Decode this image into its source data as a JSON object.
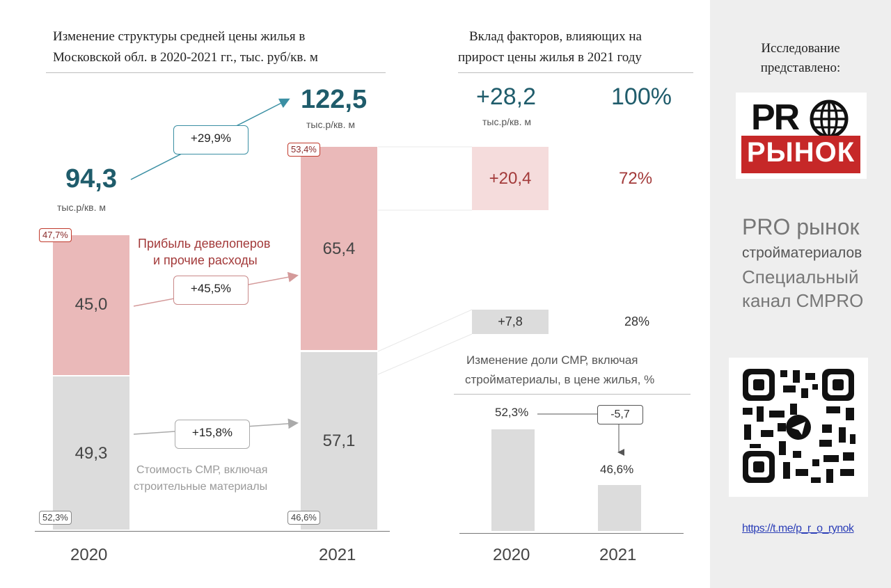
{
  "left": {
    "title_line1": "Изменение структуры средней цены жилья в",
    "title_line2": "Московской обл. в 2020-2021 гг., тыс. руб/кв. м",
    "total_2020": "94,3",
    "unit_2020": "тыс.р/кв. м",
    "total_2021": "122,5",
    "unit_2021": "тыс.р/кв. м",
    "total_change": "+29,9%",
    "profit_label_line1": "Прибыль девелоперов",
    "profit_label_line2": "и прочие расходы",
    "profit_change": "+45,5%",
    "cost_label_line1": "Стоимость СМР, включая",
    "cost_label_line2": "строительные материалы",
    "cost_change": "+15,8%",
    "profit_share_2020": "47,7%",
    "profit_share_2021": "53,4%",
    "cost_share_2020": "52,3%",
    "cost_share_2021": "46,6%",
    "profit_val_2020": "45,0",
    "profit_val_2021": "65,4",
    "cost_val_2020": "49,3",
    "cost_val_2021": "57,1",
    "year_2020": "2020",
    "year_2021": "2021"
  },
  "right": {
    "title_line1": "Вклад факторов, влияющих на",
    "title_line2": "прирост цены жилья в 2021 году",
    "total_delta": "+28,2",
    "total_delta_unit": "тыс.р/кв. м",
    "total_pct": "100%",
    "profit_delta": "+20,4",
    "profit_pct": "72%",
    "cost_delta": "+7,8",
    "cost_pct": "28%",
    "sub_title_line1": "Изменение доли СМР, включая",
    "sub_title_line2": "стройматериалы, в цене жилья, %",
    "share_2020": "52,3%",
    "share_2021": "46,6%",
    "share_change": "-5,7",
    "year_2020": "2020",
    "year_2021": "2021"
  },
  "sidebar": {
    "intro_line1": "Исследование",
    "intro_line2": "представлено:",
    "logo_top": "PR",
    "logo_bottom": "РЫНОК",
    "brand_line1": "PRO рынок",
    "brand_line2": "стройматериалов",
    "brand_line3": "Специальный",
    "brand_line4": "канал CMPRO",
    "link": "https://t.me/p_r_o_rynok"
  },
  "colors": {
    "accent_teal": "#1f5c6b",
    "profit_pink": "#eab9b9",
    "cost_grey": "#dcdcdc",
    "profit_text": "#a33a3a",
    "logo_red": "#c62828"
  },
  "chart_data": [
    {
      "type": "bar",
      "stacked": true,
      "title": "Изменение структуры средней цены жилья в Московской обл. в 2020-2021 гг., тыс. руб/кв. м",
      "categories": [
        "2020",
        "2021"
      ],
      "series": [
        {
          "name": "Стоимость СМР, включая строительные материалы",
          "values": [
            49.3,
            57.1
          ],
          "shares": [
            52.3,
            46.6
          ],
          "change": "+15,8%"
        },
        {
          "name": "Прибыль девелоперов и прочие расходы",
          "values": [
            45.0,
            65.4
          ],
          "shares": [
            47.7,
            53.4
          ],
          "change": "+45,5%"
        }
      ],
      "totals": [
        94.3,
        122.5
      ],
      "total_change": "+29,9%",
      "unit": "тыс.р/кв. м"
    },
    {
      "type": "bar",
      "title": "Вклад факторов, влияющих на прирост цены жилья в 2021 году",
      "categories": [
        "total",
        "profit",
        "cost"
      ],
      "values": [
        28.2,
        20.4,
        7.8
      ],
      "shares": [
        100,
        72,
        28
      ]
    },
    {
      "type": "bar",
      "title": "Изменение доли СМР, включая стройматериалы, в цене жилья, %",
      "categories": [
        "2020",
        "2021"
      ],
      "values": [
        52.3,
        46.6
      ],
      "change": -5.7
    }
  ]
}
